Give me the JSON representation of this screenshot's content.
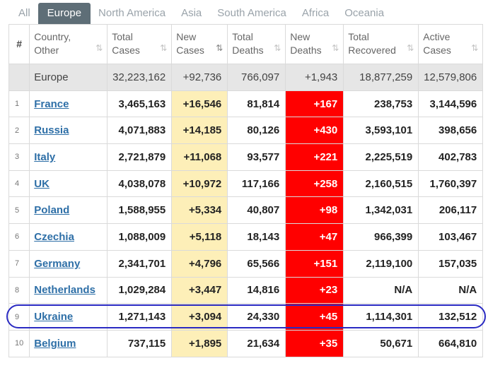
{
  "tabs": [
    "All",
    "Europe",
    "North America",
    "Asia",
    "South America",
    "Africa",
    "Oceania"
  ],
  "active_tab": "Europe",
  "headers": {
    "rank": "#",
    "country": [
      "Country,",
      "Other"
    ],
    "total_cases": [
      "Total",
      "Cases"
    ],
    "new_cases": [
      "New",
      "Cases"
    ],
    "total_deaths": [
      "Total",
      "Deaths"
    ],
    "new_deaths": [
      "New",
      "Deaths"
    ],
    "total_recovered": [
      "Total",
      "Recovered"
    ],
    "active_cases": [
      "Active",
      "Cases"
    ]
  },
  "total_row": {
    "country": "Europe",
    "total_cases": "32,223,162",
    "new_cases": "+92,736",
    "total_deaths": "766,097",
    "new_deaths": "+1,943",
    "total_recovered": "18,877,259",
    "active_cases": "12,579,806"
  },
  "rows": [
    {
      "rank": "1",
      "country": "France",
      "total_cases": "3,465,163",
      "new_cases": "+16,546",
      "total_deaths": "81,814",
      "new_deaths": "+167",
      "total_recovered": "238,753",
      "active_cases": "3,144,596"
    },
    {
      "rank": "2",
      "country": "Russia",
      "total_cases": "4,071,883",
      "new_cases": "+14,185",
      "total_deaths": "80,126",
      "new_deaths": "+430",
      "total_recovered": "3,593,101",
      "active_cases": "398,656"
    },
    {
      "rank": "3",
      "country": "Italy",
      "total_cases": "2,721,879",
      "new_cases": "+11,068",
      "total_deaths": "93,577",
      "new_deaths": "+221",
      "total_recovered": "2,225,519",
      "active_cases": "402,783"
    },
    {
      "rank": "4",
      "country": "UK",
      "total_cases": "4,038,078",
      "new_cases": "+10,972",
      "total_deaths": "117,166",
      "new_deaths": "+258",
      "total_recovered": "2,160,515",
      "active_cases": "1,760,397"
    },
    {
      "rank": "5",
      "country": "Poland",
      "total_cases": "1,588,955",
      "new_cases": "+5,334",
      "total_deaths": "40,807",
      "new_deaths": "+98",
      "total_recovered": "1,342,031",
      "active_cases": "206,117"
    },
    {
      "rank": "6",
      "country": "Czechia",
      "total_cases": "1,088,009",
      "new_cases": "+5,118",
      "total_deaths": "18,143",
      "new_deaths": "+47",
      "total_recovered": "966,399",
      "active_cases": "103,467"
    },
    {
      "rank": "7",
      "country": "Germany",
      "total_cases": "2,341,701",
      "new_cases": "+4,796",
      "total_deaths": "65,566",
      "new_deaths": "+151",
      "total_recovered": "2,119,100",
      "active_cases": "157,035"
    },
    {
      "rank": "8",
      "country": "Netherlands",
      "total_cases": "1,029,284",
      "new_cases": "+3,447",
      "total_deaths": "14,816",
      "new_deaths": "+23",
      "total_recovered": "N/A",
      "active_cases": "N/A"
    },
    {
      "rank": "9",
      "country": "Ukraine",
      "total_cases": "1,271,143",
      "new_cases": "+3,094",
      "total_deaths": "24,330",
      "new_deaths": "+45",
      "total_recovered": "1,114,301",
      "active_cases": "132,512"
    },
    {
      "rank": "10",
      "country": "Belgium",
      "total_cases": "737,115",
      "new_cases": "+1,895",
      "total_deaths": "21,634",
      "new_deaths": "+35",
      "total_recovered": "50,671",
      "active_cases": "664,810"
    }
  ],
  "colors": {
    "new_cases_bg": "#fdefb8",
    "new_deaths_bg": "#ff0000",
    "active_tab_bg": "#5e6e77",
    "highlight": "#2a2ac2",
    "link": "#2e6fa7"
  },
  "sort_icons": {
    "default": "sort-icon",
    "active": "sort-desc-icon"
  }
}
